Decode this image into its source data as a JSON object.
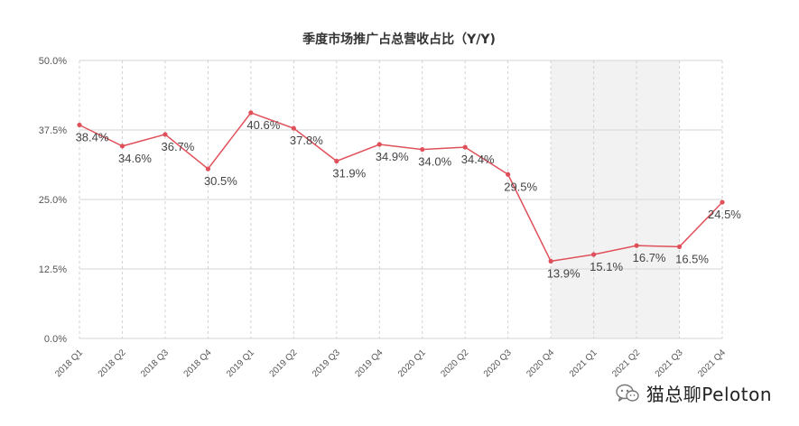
{
  "chart_data": {
    "type": "line",
    "title": "季度市场推广占总营收占比（Y/Y)",
    "categories": [
      "2018 Q1",
      "2018 Q2",
      "2018 Q3",
      "2018 Q4",
      "2019 Q1",
      "2019 Q2",
      "2019 Q3",
      "2019 Q4",
      "2020 Q1",
      "2020 Q2",
      "2020 Q3",
      "2020 Q4",
      "2021 Q1",
      "2021 Q2",
      "2021 Q3",
      "2021 Q4"
    ],
    "series": [
      {
        "values": [
          38.4,
          34.6,
          36.7,
          30.5,
          40.6,
          37.8,
          31.9,
          34.9,
          34.0,
          34.4,
          29.5,
          13.9,
          15.1,
          16.7,
          16.5,
          24.5
        ]
      }
    ],
    "data_labels": [
      "38.4%",
      "34.6%",
      "36.7%",
      "30.5%",
      "40.6%",
      "37.8%",
      "31.9%",
      "34.9%",
      "34.0%",
      "34.4%",
      "29.5%",
      "13.9%",
      "15.1%",
      "16.7%",
      "16.5%",
      "24.5%"
    ],
    "yticks": [
      0,
      12.5,
      25,
      37.5,
      50
    ],
    "ytick_labels": [
      "0.0%",
      "12.5%",
      "25.0%",
      "37.5%",
      "50.0%"
    ],
    "ylim": [
      0,
      50
    ],
    "xlabel": "",
    "ylabel": "",
    "grid": true,
    "highlight_range": [
      "2020 Q4",
      "2021 Q3"
    ],
    "line_color": "#e0505a",
    "highlight_color": "#f2f2f2"
  },
  "watermark": {
    "text": "猫总聊Peloton",
    "icon": "wechat-icon"
  }
}
